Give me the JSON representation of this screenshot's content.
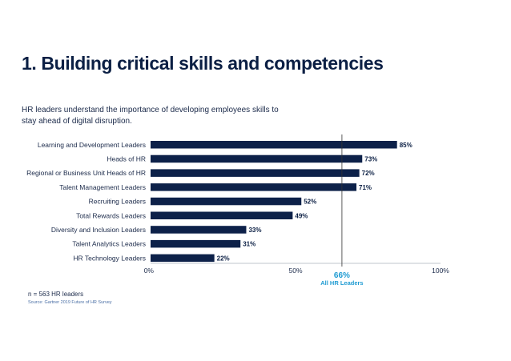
{
  "header": {
    "title": "1. Building critical skills and competencies",
    "subtitle": "HR leaders understand the importance of developing employees skills to stay ahead of digital disruption."
  },
  "footer": {
    "note": "n = 563 HR leaders",
    "source": "Source: Gartner 2019 Future of HR Survey"
  },
  "colors": {
    "bar": "#0d2149",
    "reference": "#1f9bd2",
    "axis": "#bfc4cc"
  },
  "chart_data": {
    "type": "bar",
    "orientation": "horizontal",
    "categories": [
      "Learning and Development Leaders",
      "Heads of HR",
      "Regional or Business Unit Heads of HR",
      "Talent Management Leaders",
      "Recruiting Leaders",
      "Total Rewards Leaders",
      "Diversity and Inclusion Leaders",
      "Talent Analytics Leaders",
      "HR Technology Leaders"
    ],
    "values": [
      85,
      73,
      72,
      71,
      52,
      49,
      33,
      31,
      22
    ],
    "value_labels": [
      "85%",
      "73%",
      "72%",
      "71%",
      "52%",
      "49%",
      "33%",
      "31%",
      "22%"
    ],
    "xlim": [
      0,
      100
    ],
    "ticks": [
      0,
      50,
      100
    ],
    "tick_labels": [
      "0%",
      "50%",
      "100%"
    ],
    "reference": {
      "value": 66,
      "label": "66%",
      "sublabel": "All HR Leaders"
    },
    "grid": false
  }
}
